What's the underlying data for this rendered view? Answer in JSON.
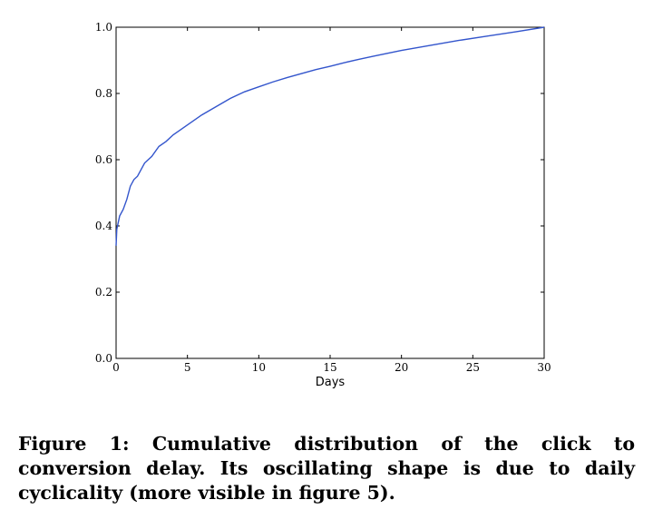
{
  "chart_data": {
    "type": "line",
    "title": "",
    "xlabel": "Days",
    "ylabel": "",
    "xlim": [
      0,
      30
    ],
    "ylim": [
      0.0,
      1.0
    ],
    "x_ticks": [
      0,
      5,
      10,
      15,
      20,
      25,
      30
    ],
    "x_tick_labels": [
      "0",
      "5",
      "10",
      "15",
      "20",
      "25",
      "30"
    ],
    "y_ticks": [
      0.0,
      0.2,
      0.4,
      0.6,
      0.8,
      1.0
    ],
    "y_tick_labels": [
      "0.0",
      "0.2",
      "0.4",
      "0.6",
      "0.8",
      "1.0"
    ],
    "grid": false,
    "series": [
      {
        "color": "#3355cc",
        "x": [
          0,
          0.05,
          0.25,
          0.5,
          0.75,
          1.0,
          1.25,
          1.5,
          1.75,
          2.0,
          2.5,
          3.0,
          3.5,
          4.0,
          4.5,
          5.0,
          6.0,
          7.0,
          8.0,
          9.0,
          10.0,
          11.0,
          12.0,
          13.0,
          14.0,
          15.0,
          16.0,
          17.0,
          18.0,
          19.0,
          20.0,
          22.0,
          24.0,
          26.0,
          28.0,
          30.0
        ],
        "y": [
          0.34,
          0.39,
          0.43,
          0.45,
          0.48,
          0.52,
          0.54,
          0.55,
          0.57,
          0.59,
          0.61,
          0.64,
          0.655,
          0.675,
          0.69,
          0.705,
          0.735,
          0.76,
          0.785,
          0.805,
          0.82,
          0.835,
          0.848,
          0.86,
          0.872,
          0.882,
          0.893,
          0.903,
          0.912,
          0.921,
          0.93,
          0.945,
          0.96,
          0.973,
          0.986,
          1.0
        ]
      }
    ]
  },
  "caption": {
    "text": "Figure 1: Cumulative distribution of the click to conversion delay. Its oscillating shape is due to daily cyclicality (more visible in figure 5)."
  }
}
